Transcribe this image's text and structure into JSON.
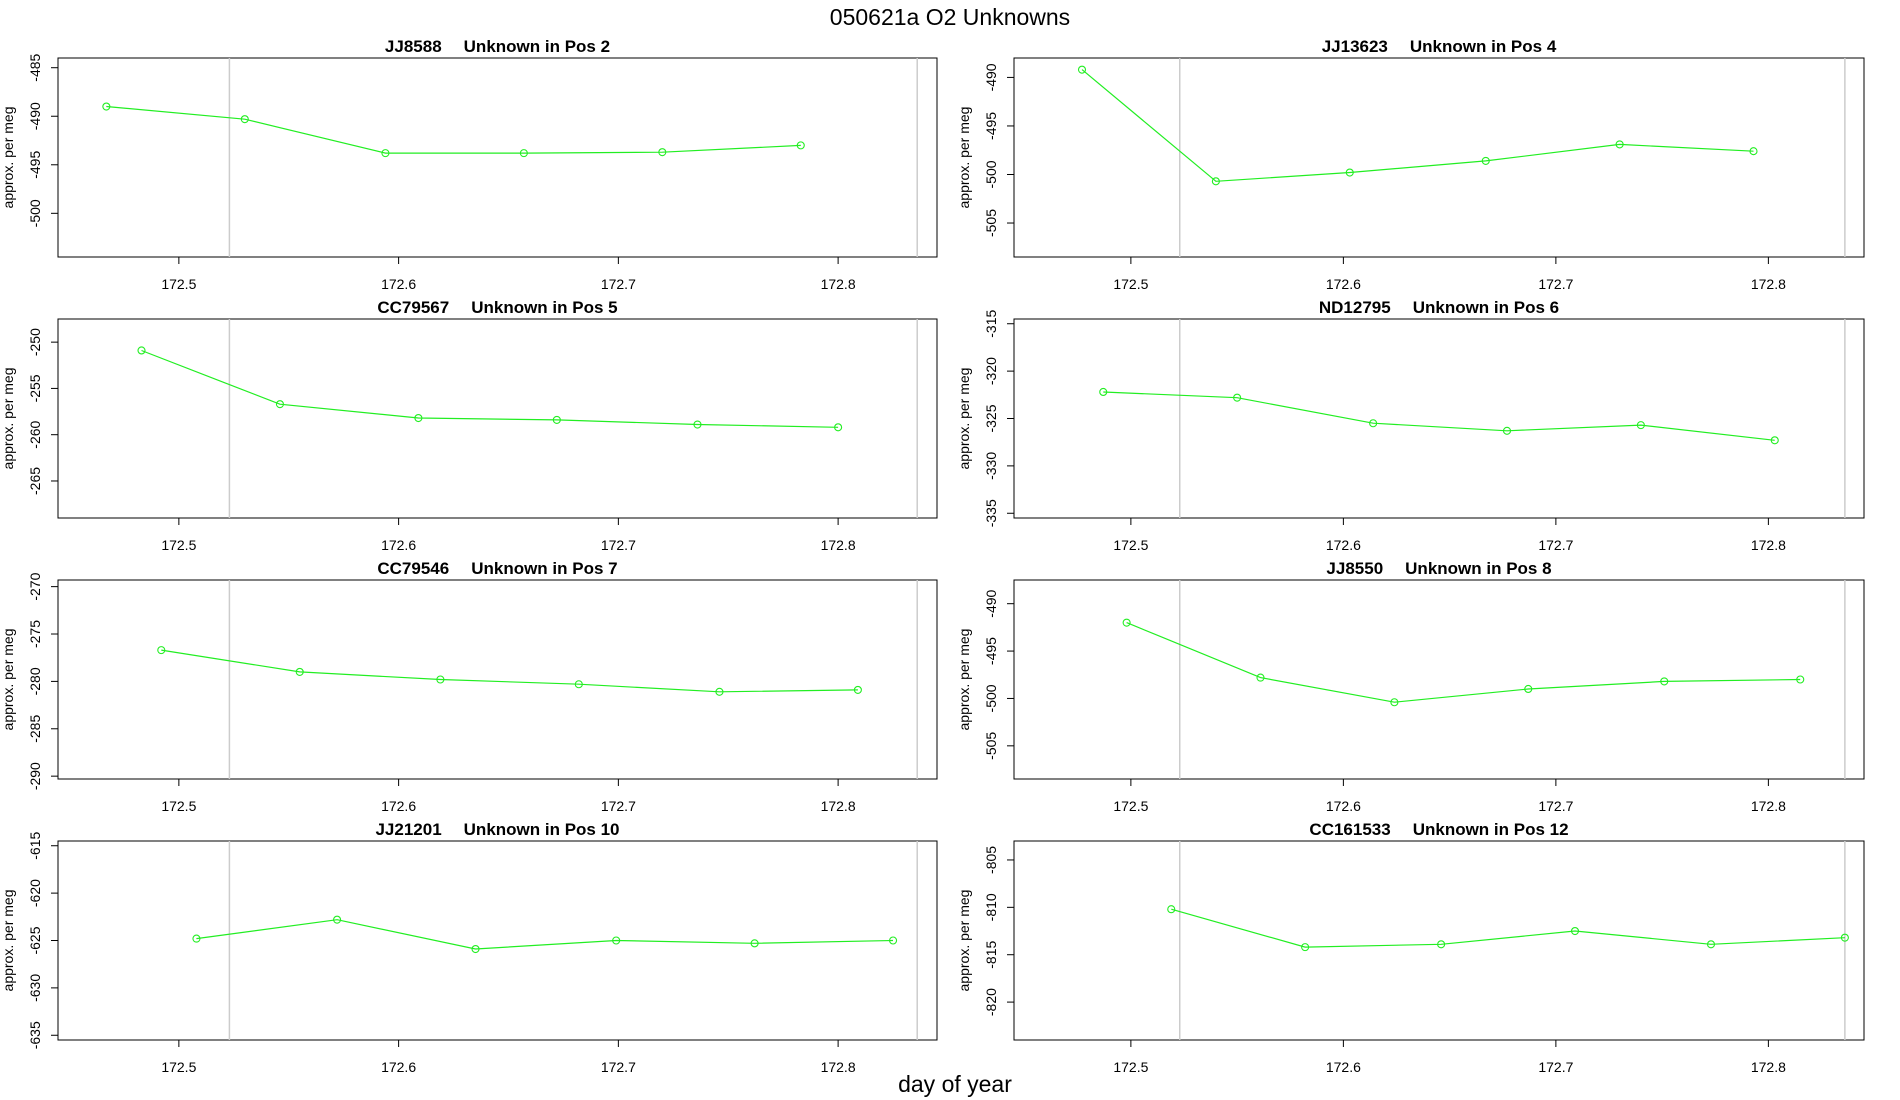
{
  "title": "050621a  O2 Unknowns",
  "xlabel": "day of year",
  "chart_data": [
    {
      "type": "line",
      "title_id": "JJ8588",
      "title_desc": "Unknown in Pos 2",
      "ylabel": "approx. per meg",
      "xlim": [
        172.445,
        172.845
      ],
      "ylim": [
        -504.5,
        -484
      ],
      "xticks": [
        "172.5",
        "172.6",
        "172.7",
        "172.8"
      ],
      "yticks": [
        "-485",
        "-490",
        "-495",
        "-500"
      ],
      "vlines": [
        172.523,
        172.836
      ],
      "x": [
        172.467,
        172.53,
        172.594,
        172.657,
        172.72,
        172.783
      ],
      "y": [
        -489.0,
        -490.3,
        -493.8,
        -493.8,
        -493.7,
        -493.0
      ]
    },
    {
      "type": "line",
      "title_id": "JJ13623",
      "title_desc": "Unknown in Pos 4",
      "ylabel": "approx. per meg",
      "xlim": [
        172.445,
        172.845
      ],
      "ylim": [
        -508.5,
        -488
      ],
      "xticks": [
        "172.5",
        "172.6",
        "172.7",
        "172.8"
      ],
      "yticks": [
        "-490",
        "-495",
        "-500",
        "-505"
      ],
      "vlines": [
        172.523,
        172.836
      ],
      "x": [
        172.477,
        172.54,
        172.603,
        172.667,
        172.73,
        172.793
      ],
      "y": [
        -489.2,
        -500.7,
        -499.8,
        -498.6,
        -496.9,
        -497.6
      ]
    },
    {
      "type": "line",
      "title_id": "CC79567",
      "title_desc": "Unknown in Pos 5",
      "ylabel": "approx. per meg",
      "xlim": [
        172.445,
        172.845
      ],
      "ylim": [
        -269,
        -247.5
      ],
      "xticks": [
        "172.5",
        "172.6",
        "172.7",
        "172.8"
      ],
      "yticks": [
        "-250",
        "-255",
        "-260",
        "-265"
      ],
      "vlines": [
        172.523,
        172.836
      ],
      "x": [
        172.483,
        172.546,
        172.609,
        172.672,
        172.736,
        172.8
      ],
      "y": [
        -250.9,
        -256.7,
        -258.2,
        -258.4,
        -258.9,
        -259.2
      ]
    },
    {
      "type": "line",
      "title_id": "ND12795",
      "title_desc": "Unknown in Pos 6",
      "ylabel": "approx. per meg",
      "xlim": [
        172.445,
        172.845
      ],
      "ylim": [
        -335.5,
        -314.5
      ],
      "xticks": [
        "172.5",
        "172.6",
        "172.7",
        "172.8"
      ],
      "yticks": [
        "-315",
        "-320",
        "-325",
        "-330",
        "-335"
      ],
      "vlines": [
        172.523,
        172.836
      ],
      "x": [
        172.487,
        172.55,
        172.614,
        172.677,
        172.74,
        172.803
      ],
      "y": [
        -322.2,
        -322.8,
        -325.5,
        -326.3,
        -325.7,
        -327.3
      ]
    },
    {
      "type": "line",
      "title_id": "CC79546",
      "title_desc": "Unknown in Pos 7",
      "ylabel": "approx. per meg",
      "xlim": [
        172.445,
        172.845
      ],
      "ylim": [
        -290.3,
        -269.3
      ],
      "xticks": [
        "172.5",
        "172.6",
        "172.7",
        "172.8"
      ],
      "yticks": [
        "-270",
        "-275",
        "-280",
        "-285",
        "-290"
      ],
      "vlines": [
        172.523,
        172.836
      ],
      "x": [
        172.492,
        172.555,
        172.619,
        172.682,
        172.746,
        172.809
      ],
      "y": [
        -276.7,
        -279.0,
        -279.8,
        -280.3,
        -281.1,
        -280.9
      ]
    },
    {
      "type": "line",
      "title_id": "JJ8550",
      "title_desc": "Unknown in Pos 8",
      "ylabel": "approx. per meg",
      "xlim": [
        172.445,
        172.845
      ],
      "ylim": [
        -508.5,
        -487.5
      ],
      "xticks": [
        "172.5",
        "172.6",
        "172.7",
        "172.8"
      ],
      "yticks": [
        "-490",
        "-495",
        "-500",
        "-505"
      ],
      "vlines": [
        172.523,
        172.836
      ],
      "x": [
        172.498,
        172.561,
        172.624,
        172.687,
        172.751,
        172.815
      ],
      "y": [
        -492.0,
        -497.8,
        -500.4,
        -499.0,
        -498.2,
        -498.0
      ]
    },
    {
      "type": "line",
      "title_id": "JJ21201",
      "title_desc": "Unknown in Pos 10",
      "ylabel": "approx. per meg",
      "xlim": [
        172.445,
        172.845
      ],
      "ylim": [
        -635.5,
        -614.5
      ],
      "xticks": [
        "172.5",
        "172.6",
        "172.7",
        "172.8"
      ],
      "yticks": [
        "-615",
        "-620",
        "-625",
        "-630",
        "-635"
      ],
      "vlines": [
        172.523,
        172.836
      ],
      "x": [
        172.508,
        172.572,
        172.635,
        172.699,
        172.762,
        172.825
      ],
      "y": [
        -624.8,
        -622.8,
        -625.9,
        -625.0,
        -625.3,
        -625.0
      ]
    },
    {
      "type": "line",
      "title_id": "CC161533",
      "title_desc": "Unknown in Pos 12",
      "ylabel": "approx. per meg",
      "xlim": [
        172.445,
        172.845
      ],
      "ylim": [
        -824,
        -803
      ],
      "xticks": [
        "172.5",
        "172.6",
        "172.7",
        "172.8"
      ],
      "yticks": [
        "-805",
        "-810",
        "-815",
        "-820"
      ],
      "vlines": [
        172.523,
        172.836
      ],
      "x": [
        172.519,
        172.582,
        172.646,
        172.709,
        172.773,
        172.836
      ],
      "y": [
        -810.2,
        -814.2,
        -813.9,
        -812.5,
        -813.9,
        -813.2
      ]
    }
  ]
}
